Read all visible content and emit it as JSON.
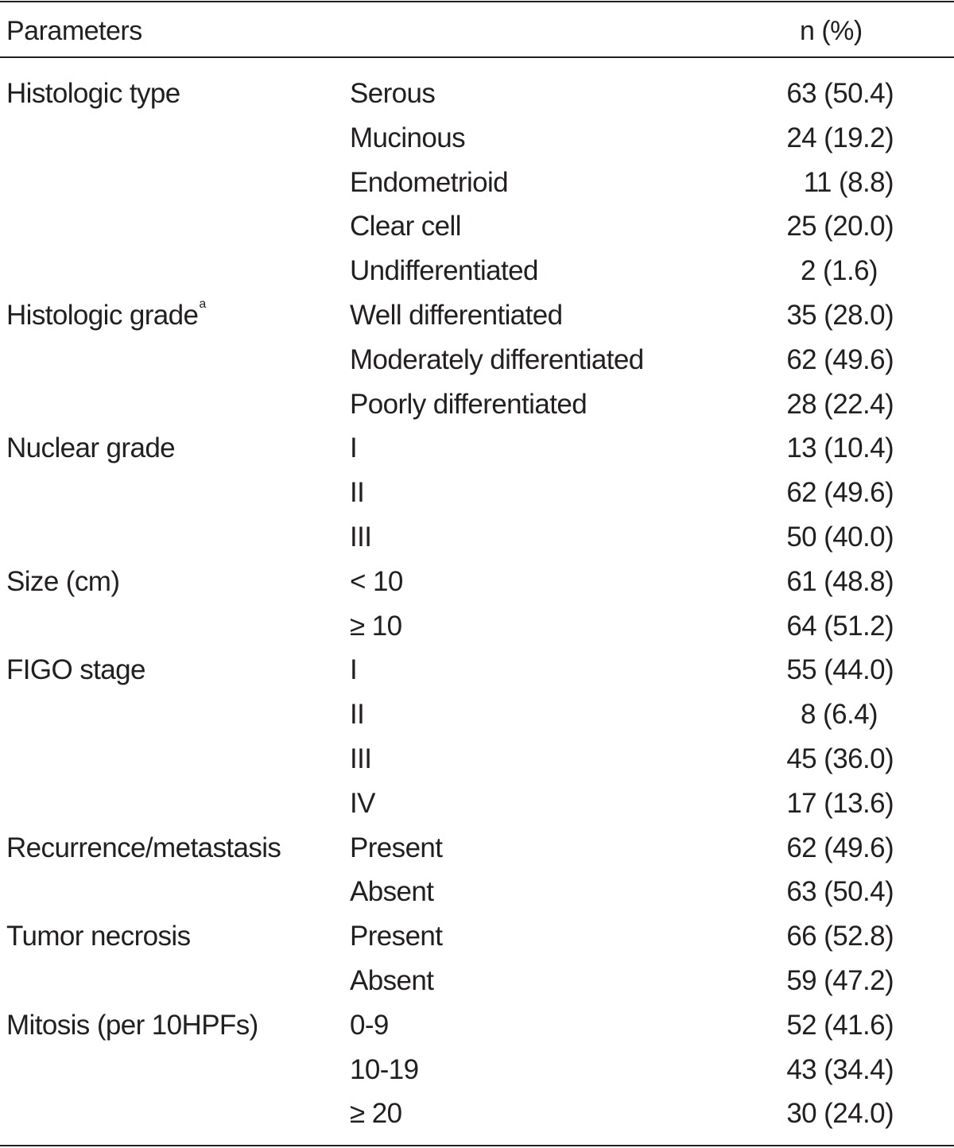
{
  "header": {
    "parameters": "Parameters",
    "n_pct": "n (%)"
  },
  "rows": [
    {
      "param": "Histologic type",
      "cat": "Serous",
      "val": "63 (50.4)"
    },
    {
      "param": "",
      "cat": "Mucinous",
      "val": "24 (19.2)"
    },
    {
      "param": "",
      "cat": "Endometrioid",
      "val": "11 (8.8)"
    },
    {
      "param": "",
      "cat": "Clear cell",
      "val": "25 (20.0)"
    },
    {
      "param": "",
      "cat": "Undifferentiated",
      "val": "2 (1.6)"
    },
    {
      "param": "Histologic grade",
      "sup": "a",
      "cat": "Well differentiated",
      "val": "35 (28.0)"
    },
    {
      "param": "",
      "cat": "Moderately differentiated",
      "val": "62 (49.6)"
    },
    {
      "param": "",
      "cat": "Poorly differentiated",
      "val": "28 (22.4)"
    },
    {
      "param": "Nuclear grade",
      "cat": "I",
      "val": "13 (10.4)"
    },
    {
      "param": "",
      "cat": "II",
      "val": "62 (49.6)"
    },
    {
      "param": "",
      "cat": "III",
      "val": "50 (40.0)"
    },
    {
      "param": "Size (cm)",
      "cat": "< 10",
      "val": "61 (48.8)"
    },
    {
      "param": "",
      "cat": "≥ 10",
      "val": "64 (51.2)"
    },
    {
      "param": "FIGO stage",
      "cat": "I",
      "val": "55 (44.0)"
    },
    {
      "param": "",
      "cat": "II",
      "val": "8 (6.4)"
    },
    {
      "param": "",
      "cat": "III",
      "val": "45 (36.0)"
    },
    {
      "param": "",
      "cat": "IV",
      "val": "17 (13.6)"
    },
    {
      "param": "Recurrence/metastasis",
      "cat": "Present",
      "val": "62 (49.6)"
    },
    {
      "param": "",
      "cat": "Absent",
      "val": "63 (50.4)"
    },
    {
      "param": "Tumor necrosis",
      "cat": "Present",
      "val": "66 (52.8)"
    },
    {
      "param": "",
      "cat": "Absent",
      "val": "59 (47.2)"
    },
    {
      "param": "Mitosis (per 10HPFs)",
      "cat": "0-9",
      "val": "52 (41.6)"
    },
    {
      "param": "",
      "cat": "10-19",
      "val": "43 (34.4)"
    },
    {
      "param": "",
      "cat": "≥ 20",
      "val": "30 (24.0)"
    }
  ]
}
